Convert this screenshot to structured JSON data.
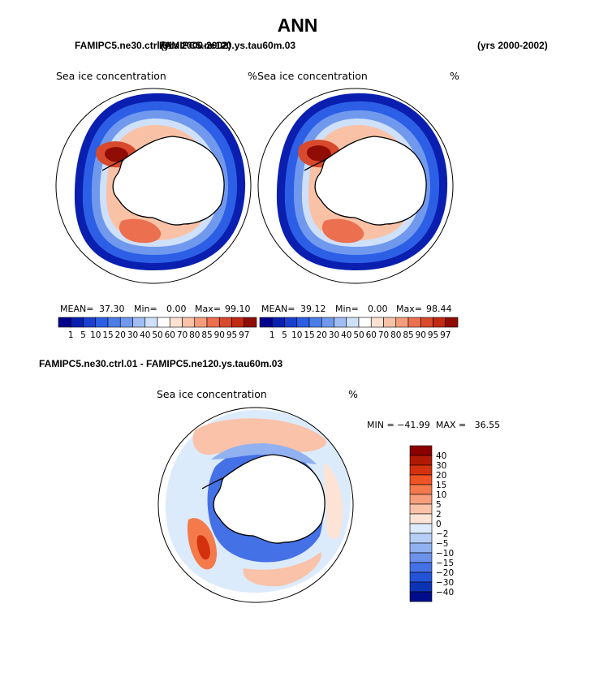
{
  "main_title": "ANN",
  "case1": "FAMIPC5.ne30.ctrl.01",
  "years1": "(yrs 2000-2002)",
  "case2": "FAMIPC5.ne120.ys.tau60m.03",
  "years2": "(yrs 2000-2002)",
  "diff_title": "FAMIPC5.ne30.ctrl.01 - FAMIPC5.ne120.ys.tau60m.03",
  "chart_data": [
    {
      "type": "heatmap",
      "title": "Sea ice concentration",
      "units": "%",
      "projection": "south-polar-stereographic",
      "stats": {
        "mean_label": "MEAN=",
        "mean": "37.30",
        "min_label": "Min=",
        "min": "0.00",
        "max_label": "Max=",
        "max": "99.10"
      },
      "colorbar": {
        "orientation": "horizontal",
        "levels": [
          "1",
          "5",
          "10",
          "15",
          "20",
          "30",
          "40",
          "50",
          "60",
          "70",
          "80",
          "85",
          "90",
          "95",
          "97"
        ],
        "colors": [
          "#00008a",
          "#0a1fb0",
          "#1b3fd0",
          "#2c5fe6",
          "#4a7de8",
          "#7099ee",
          "#a0bdf4",
          "#cfe0fa",
          "#ffffff",
          "#fde2d2",
          "#f9c2a6",
          "#f49c7e",
          "#ec6f4f",
          "#d9492b",
          "#c22a12",
          "#8f0d05"
        ]
      }
    },
    {
      "type": "heatmap",
      "title": "Sea ice concentration",
      "units": "%",
      "projection": "south-polar-stereographic",
      "stats": {
        "mean_label": "MEAN=",
        "mean": "39.12",
        "min_label": "Min=",
        "min": "0.00",
        "max_label": "Max=",
        "max": "98.44"
      },
      "colorbar": {
        "orientation": "horizontal",
        "levels": [
          "1",
          "5",
          "10",
          "15",
          "20",
          "30",
          "40",
          "50",
          "60",
          "70",
          "80",
          "85",
          "90",
          "95",
          "97"
        ],
        "colors": [
          "#00008a",
          "#0a1fb0",
          "#1b3fd0",
          "#2c5fe6",
          "#4a7de8",
          "#7099ee",
          "#a0bdf4",
          "#cfe0fa",
          "#ffffff",
          "#fde2d2",
          "#f9c2a6",
          "#f49c7e",
          "#ec6f4f",
          "#d9492b",
          "#c22a12",
          "#8f0d05"
        ]
      }
    },
    {
      "type": "heatmap",
      "title": "Sea ice concentration",
      "units": "%",
      "projection": "south-polar-stereographic",
      "stats_line": "MIN = −41.99  MAX =   36.55",
      "colorbar": {
        "orientation": "vertical",
        "levels": [
          "40",
          "30",
          "20",
          "15",
          "10",
          "5",
          "2",
          "0",
          "−2",
          "−5",
          "−10",
          "−15",
          "−20",
          "−30",
          "−40"
        ],
        "colors": [
          "#8b0000",
          "#b01a05",
          "#d4320f",
          "#ee5424",
          "#f47a4c",
          "#f79e7c",
          "#fac2a8",
          "#fde3d5",
          "#dcebfb",
          "#b7cef6",
          "#91b1f1",
          "#6c92ec",
          "#4571e6",
          "#2353d6",
          "#0d33b5",
          "#000d8a"
        ]
      }
    }
  ]
}
